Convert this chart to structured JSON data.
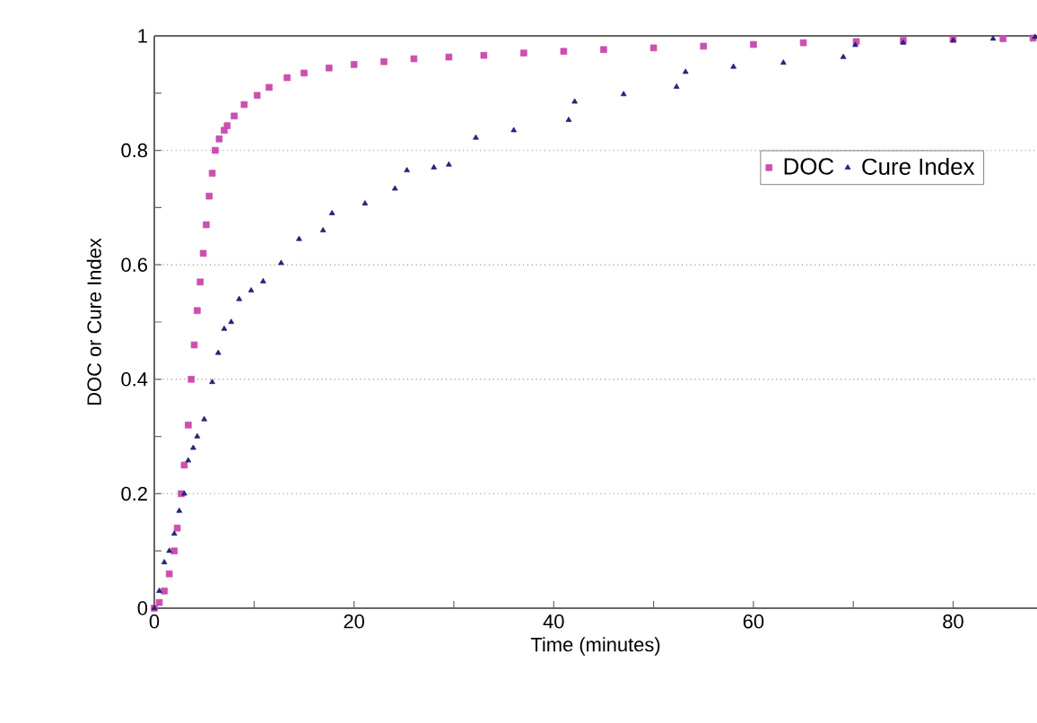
{
  "chart_data": {
    "type": "scatter",
    "xlabel": "Time (minutes)",
    "ylabel": "DOC or Cure Index",
    "xlim": [
      0,
      88.4
    ],
    "ylim": [
      0,
      1
    ],
    "xticks": [
      0,
      {
        "value": 10,
        "label": null
      },
      20,
      {
        "value": 30,
        "label": null
      },
      40,
      {
        "value": 50,
        "label": null
      },
      60,
      {
        "value": 70,
        "label": null
      },
      80
    ],
    "yticks": [
      0,
      {
        "value": 0.1,
        "label": null
      },
      0.2,
      {
        "value": 0.3,
        "label": null
      },
      0.4,
      {
        "value": 0.5,
        "label": null
      },
      0.6,
      {
        "value": 0.7,
        "label": null
      },
      0.8,
      {
        "value": 0.9,
        "label": null
      },
      1
    ],
    "grid": "y",
    "legend": "right",
    "series": [
      {
        "name": "DOC",
        "color": "#cc4fb0",
        "marker": "square",
        "x": [
          0,
          0.5,
          1,
          1.5,
          2,
          2.3,
          2.7,
          3,
          3.4,
          3.7,
          4,
          4.3,
          4.6,
          4.9,
          5.2,
          5.5,
          5.8,
          6.1,
          6.5,
          7,
          7.3,
          8,
          9,
          10.3,
          11.5,
          13.3,
          15,
          17.5,
          20,
          23,
          26,
          29.5,
          33,
          37,
          41,
          45,
          50,
          55,
          60,
          65,
          70.3,
          75,
          80,
          85,
          88
        ],
        "values": [
          0,
          0.01,
          0.03,
          0.06,
          0.1,
          0.14,
          0.2,
          0.25,
          0.32,
          0.4,
          0.46,
          0.52,
          0.57,
          0.62,
          0.67,
          0.72,
          0.76,
          0.8,
          0.82,
          0.835,
          0.843,
          0.86,
          0.88,
          0.896,
          0.91,
          0.927,
          0.935,
          0.944,
          0.95,
          0.955,
          0.96,
          0.963,
          0.966,
          0.97,
          0.973,
          0.976,
          0.979,
          0.982,
          0.985,
          0.988,
          0.99,
          0.992,
          0.994,
          0.995,
          0.996
        ]
      },
      {
        "name": "Cure Index",
        "color": "#24247a",
        "marker": "triangle",
        "x": [
          0,
          0.5,
          1,
          1.5,
          2,
          2.5,
          3,
          3.4,
          3.9,
          4.3,
          5,
          5.8,
          6.4,
          7,
          7.7,
          8.5,
          9.7,
          10.9,
          12.7,
          14.5,
          16.9,
          17.8,
          21.1,
          24.1,
          25.3,
          28,
          29.5,
          32.2,
          36,
          41.5,
          42.1,
          47,
          52.3,
          53.2,
          58,
          63,
          69,
          70.2,
          75,
          80,
          84,
          88.2
        ],
        "values": [
          0,
          0.03,
          0.08,
          0.1,
          0.13,
          0.17,
          0.2,
          0.258,
          0.28,
          0.3,
          0.33,
          0.395,
          0.446,
          0.488,
          0.5,
          0.54,
          0.555,
          0.571,
          0.603,
          0.645,
          0.66,
          0.69,
          0.707,
          0.733,
          0.765,
          0.77,
          0.775,
          0.822,
          0.835,
          0.853,
          0.885,
          0.898,
          0.911,
          0.937,
          0.946,
          0.953,
          0.963,
          0.984,
          0.988,
          0.992,
          0.995,
          0.998
        ]
      }
    ]
  }
}
